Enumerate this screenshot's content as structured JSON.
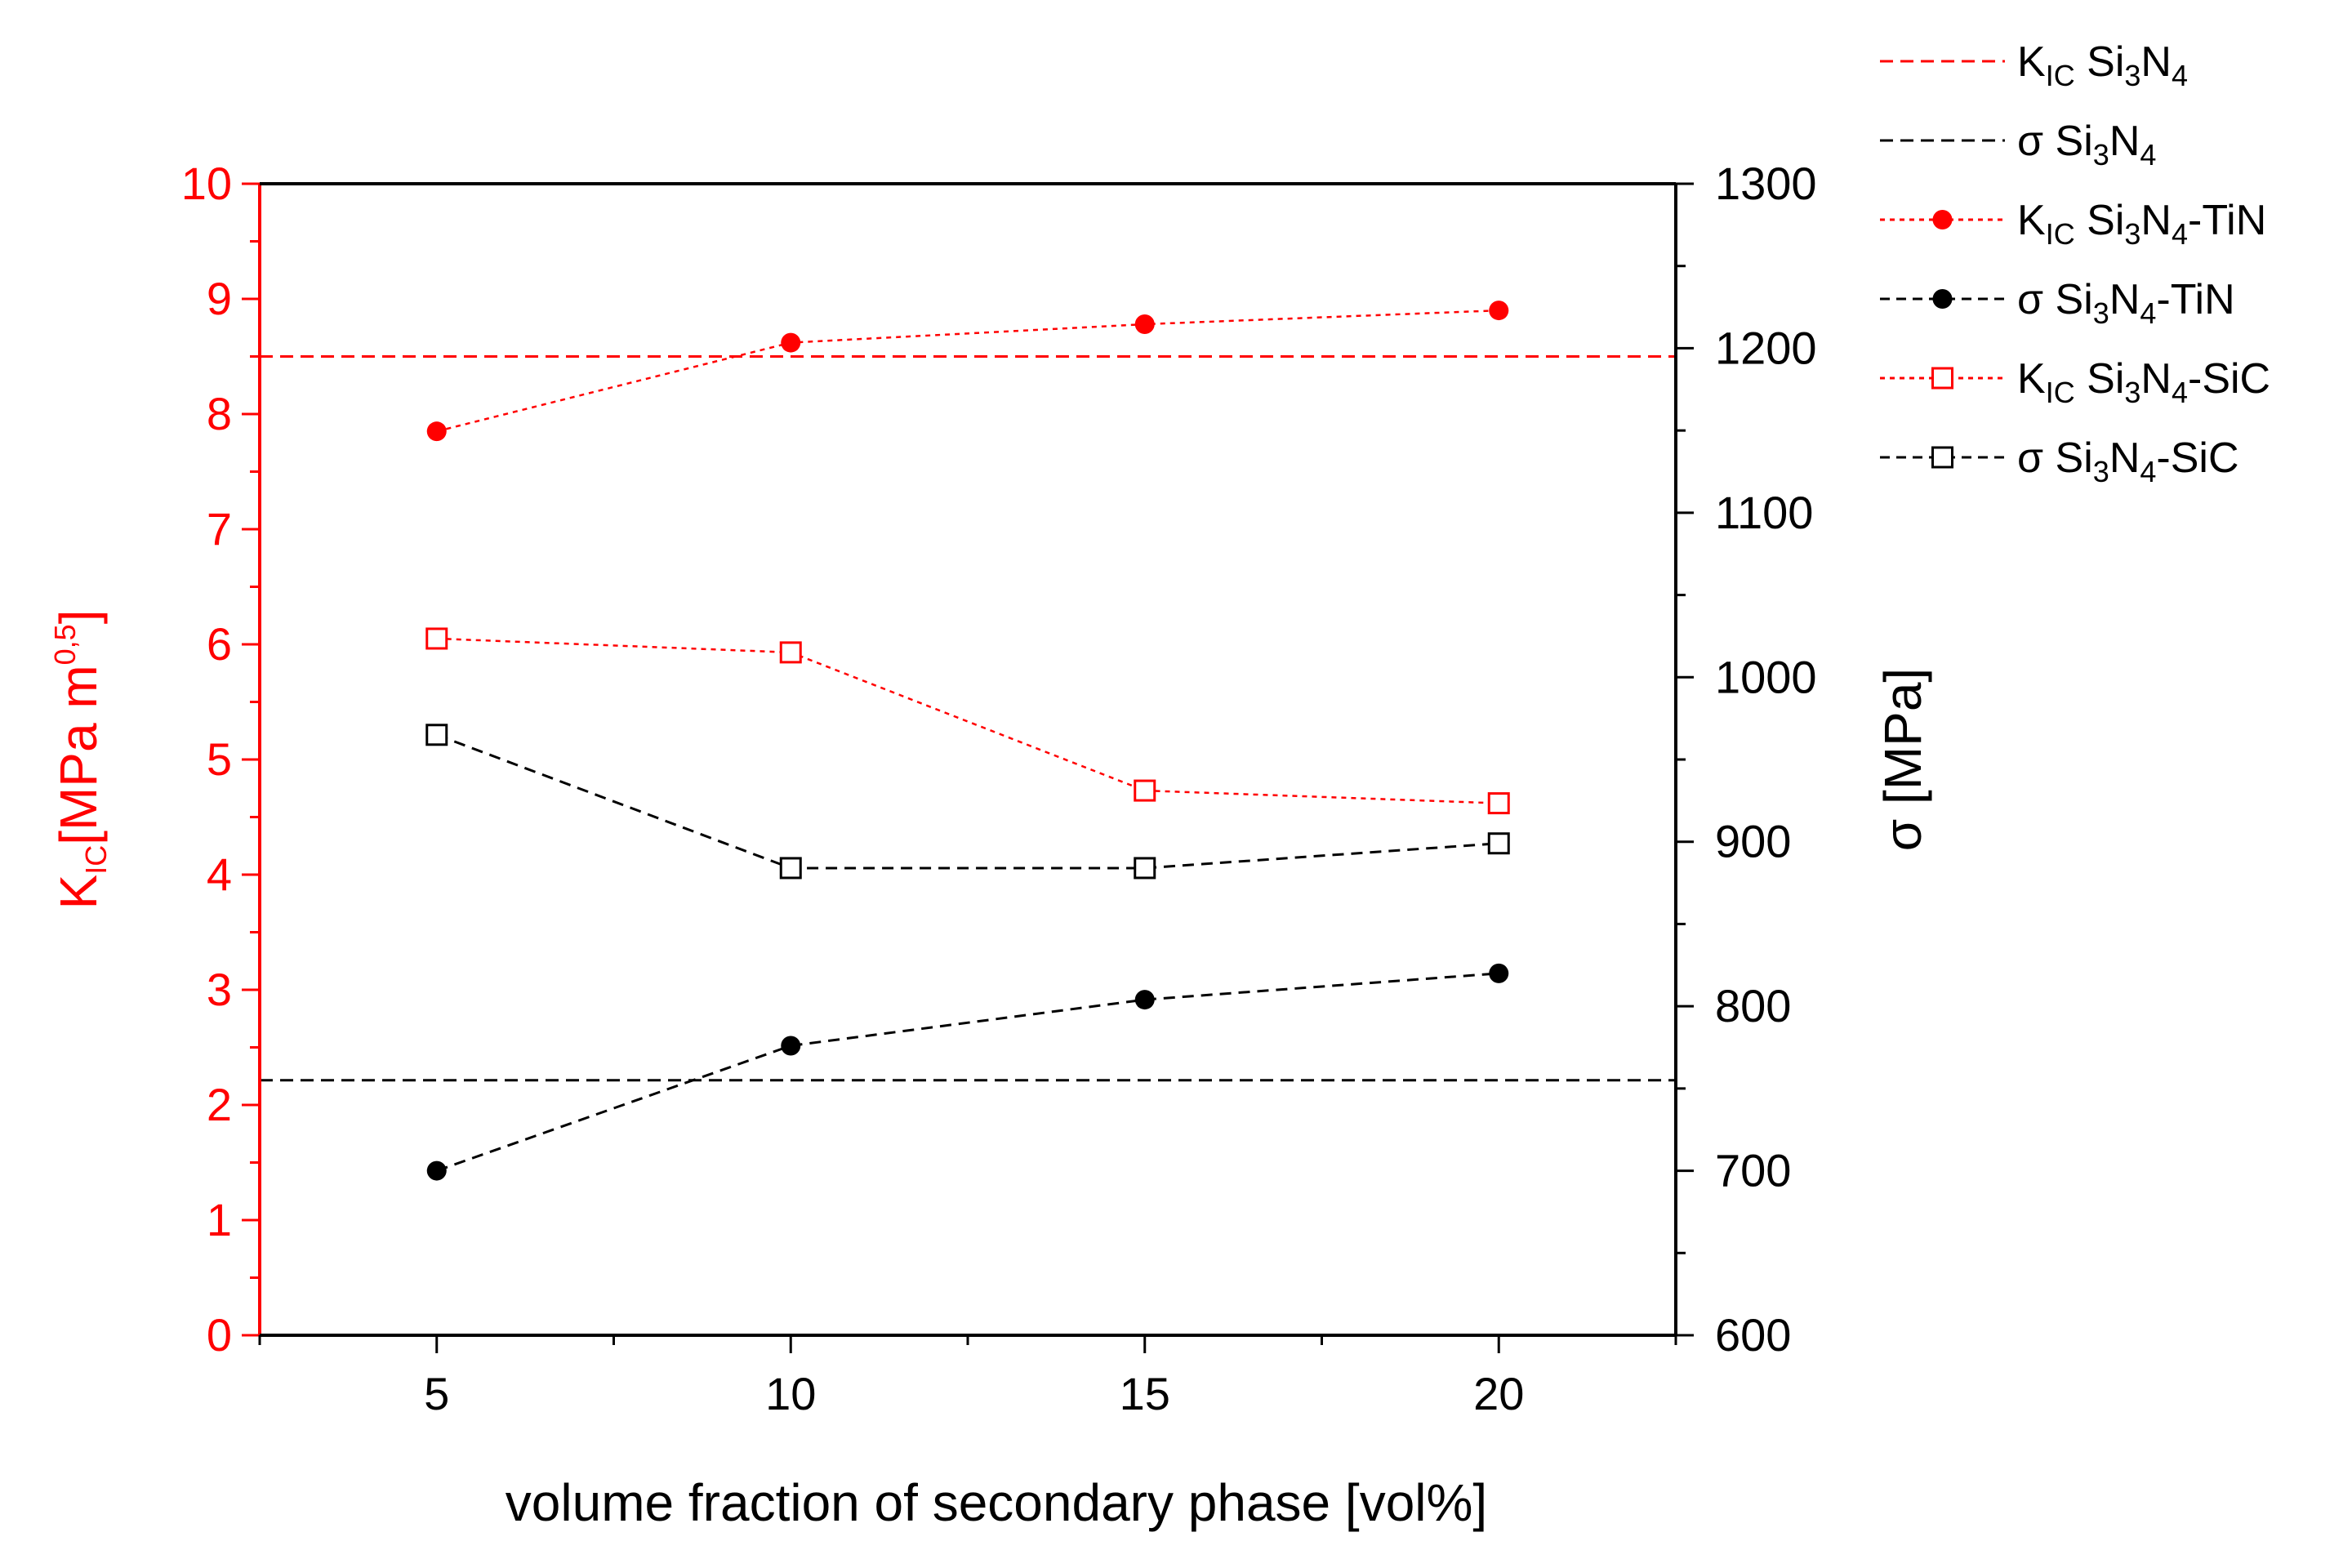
{
  "chart_data": {
    "type": "line",
    "x": [
      5,
      10,
      15,
      20
    ],
    "xlabel": "volume fraction of secondary phase [vol%]",
    "xlim": [
      2.5,
      22.5
    ],
    "xticks": [
      5,
      10,
      15,
      20
    ],
    "left_axis": {
      "label_main": "K",
      "label_sub": "IC",
      "label_rest": "[MPa m",
      "label_sup": "0,5",
      "label_end": "]",
      "ylim": [
        0,
        10
      ],
      "ticks": [
        0,
        1,
        2,
        3,
        4,
        5,
        6,
        7,
        8,
        9,
        10
      ],
      "color": "#ff0000"
    },
    "right_axis": {
      "label_sigma": "σ",
      "label_rest": " [MPa]",
      "ylim": [
        600,
        1300
      ],
      "ticks": [
        600,
        700,
        800,
        900,
        1000,
        1100,
        1200,
        1300
      ],
      "color": "#000000"
    },
    "reference_lines": [
      {
        "name": "KIC Si3N4",
        "axis": "left",
        "value": 8.5,
        "color": "#ff0000"
      },
      {
        "name": "σ Si3N4",
        "axis": "right",
        "value": 755,
        "color": "#000000"
      }
    ],
    "series": [
      {
        "name": "KIC Si3N4-TiN",
        "axis": "left",
        "marker": "filled-circle",
        "color": "#ff0000",
        "values": [
          7.85,
          8.62,
          8.78,
          8.9
        ]
      },
      {
        "name": "σ Si3N4-TiN",
        "axis": "right",
        "marker": "filled-circle",
        "color": "#000000",
        "values": [
          700,
          776,
          804,
          820
        ]
      },
      {
        "name": "KIC Si3N4-SiC",
        "axis": "left",
        "marker": "open-square",
        "color": "#ff0000",
        "values": [
          6.05,
          5.93,
          4.73,
          4.62
        ]
      },
      {
        "name": "σ Si3N4-SiC",
        "axis": "right",
        "marker": "open-square",
        "color": "#000000",
        "values": [
          965,
          884,
          884,
          899
        ]
      }
    ],
    "legend": {
      "position": "top-right",
      "entries": [
        {
          "style": "dash",
          "color": "#ff0000",
          "pre": "K",
          "sub1": "IC",
          "mid": " Si",
          "sub2": "3",
          "mid2": "N",
          "sub3": "4",
          "post": ""
        },
        {
          "style": "dash",
          "color": "#000000",
          "pre": "σ",
          "sub1": "",
          "mid": " Si",
          "sub2": "3",
          "mid2": "N",
          "sub3": "4",
          "post": ""
        },
        {
          "style": "dot-circle",
          "color": "#ff0000",
          "pre": "K",
          "sub1": "IC",
          "mid": " Si",
          "sub2": "3",
          "mid2": "N",
          "sub3": "4",
          "post": "-TiN"
        },
        {
          "style": "dash-circle",
          "color": "#000000",
          "pre": "σ",
          "sub1": "",
          "mid": " Si",
          "sub2": "3",
          "mid2": "N",
          "sub3": "4",
          "post": "-TiN"
        },
        {
          "style": "dot-square",
          "color": "#ff0000",
          "pre": "K",
          "sub1": "IC",
          "mid": " Si",
          "sub2": "3",
          "mid2": "N",
          "sub3": "4",
          "post": "-SiC"
        },
        {
          "style": "dash-square",
          "color": "#000000",
          "pre": "σ",
          "sub1": "",
          "mid": " Si",
          "sub2": "3",
          "mid2": "N",
          "sub3": "4",
          "post": "-SiC"
        }
      ]
    }
  }
}
